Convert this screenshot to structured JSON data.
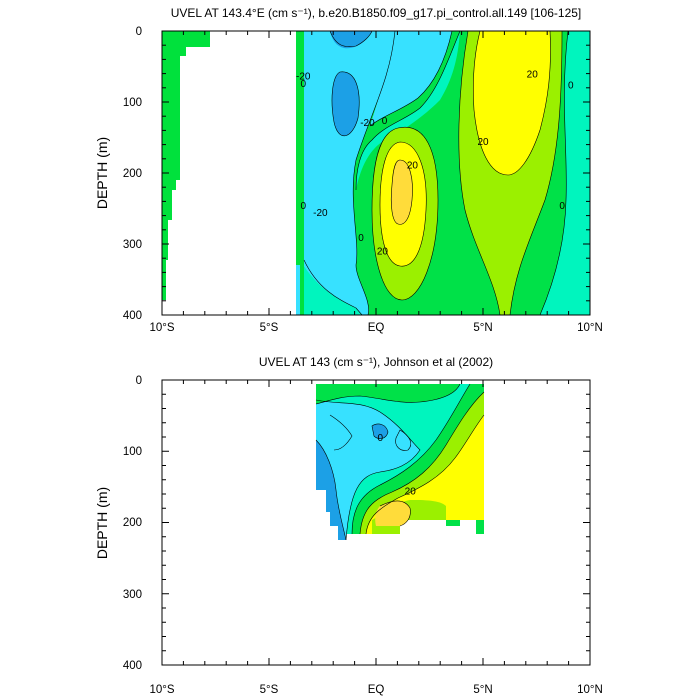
{
  "chart_data": [
    {
      "type": "contour",
      "title": "UVEL AT 143.4°E (cm s⁻¹), b.e20.B1850.f09_g17.pi_control.all.149 [106-125]",
      "ylabel": "DEPTH (m)",
      "xlim": [
        -10,
        10
      ],
      "ylim": [
        400,
        0
      ],
      "x_ticks": [
        -10,
        -5,
        0,
        5,
        10
      ],
      "x_tick_labels": [
        "10°S",
        "5°S",
        "EQ",
        "5°N",
        "10°N"
      ],
      "y_ticks": [
        0,
        100,
        200,
        300,
        400
      ],
      "y_tick_labels": [
        "0",
        "100",
        "200",
        "300",
        "400"
      ],
      "contour_interval": 10,
      "colors": {
        "negative_strong": "#1ca0e6",
        "negative": "#37e1ff",
        "near_zero": "#00f5be",
        "positive": "#00e148",
        "positive_mid": "#9bf000",
        "positive_strong": "#ffff00",
        "positive_max": "#ffdc3a",
        "land": "#00e13c"
      },
      "contour_labels": [
        {
          "text": "-20",
          "x": -3.4,
          "y": 63
        },
        {
          "text": "0",
          "x": -3.4,
          "y": 73
        },
        {
          "text": "-20",
          "x": -0.4,
          "y": 128
        },
        {
          "text": "0",
          "x": 0.4,
          "y": 125
        },
        {
          "text": "20",
          "x": 1.7,
          "y": 188
        },
        {
          "text": "0",
          "x": -3.4,
          "y": 245
        },
        {
          "text": "-20",
          "x": -2.6,
          "y": 255
        },
        {
          "text": "0",
          "x": -0.7,
          "y": 290
        },
        {
          "text": "20",
          "x": 0.3,
          "y": 309
        },
        {
          "text": "20",
          "x": 7.3,
          "y": 60
        },
        {
          "text": "0",
          "x": 9.1,
          "y": 75
        },
        {
          "text": "20",
          "x": 5.0,
          "y": 155
        },
        {
          "text": "0",
          "x": 8.7,
          "y": 245
        }
      ]
    },
    {
      "type": "contour",
      "title": "UVEL AT 143 (cm s⁻¹), Johnson et al (2002)",
      "ylabel": "DEPTH (m)",
      "xlim": [
        -10,
        10
      ],
      "ylim": [
        400,
        0
      ],
      "x_ticks": [
        -10,
        -5,
        0,
        5,
        10
      ],
      "x_tick_labels": [
        "10°S",
        "5°S",
        "EQ",
        "5°N",
        "10°N"
      ],
      "y_ticks": [
        0,
        100,
        200,
        300,
        400
      ],
      "y_tick_labels": [
        "0",
        "100",
        "200",
        "300",
        "400"
      ],
      "contour_interval": 10,
      "data_extent": {
        "x": [
          -2.8,
          5.0
        ],
        "y": [
          5,
          225
        ]
      },
      "contour_labels": [
        {
          "text": "0",
          "x": 0.2,
          "y": 80
        },
        {
          "text": "20",
          "x": 1.6,
          "y": 155
        }
      ]
    }
  ]
}
